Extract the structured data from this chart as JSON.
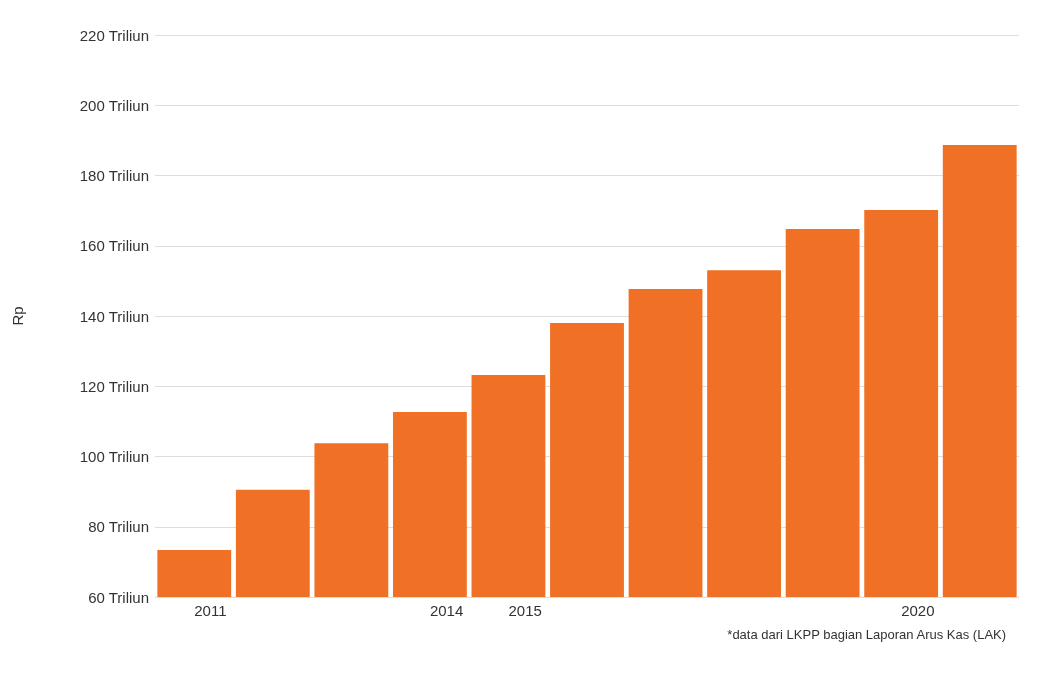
{
  "chart_data": {
    "type": "bar",
    "ylabel": "Rp",
    "categories": [
      "2011",
      null,
      null,
      "2014",
      "2015",
      null,
      null,
      null,
      null,
      "2020",
      null
    ],
    "values": [
      73.4,
      90.5,
      103.8,
      112.7,
      123.2,
      138,
      147.7,
      153,
      164.8,
      170.2,
      188.7
    ],
    "color": "#f07025",
    "ylim": [
      60,
      220
    ],
    "yticks": [
      {
        "value": 60,
        "label": "60 Triliun"
      },
      {
        "value": 80,
        "label": "80 Triliun"
      },
      {
        "value": 100,
        "label": "100 Triliun"
      },
      {
        "value": 120,
        "label": "120 Triliun"
      },
      {
        "value": 140,
        "label": "140 Triliun"
      },
      {
        "value": 160,
        "label": "160 Triliun"
      },
      {
        "value": 180,
        "label": "180 Triliun"
      },
      {
        "value": 200,
        "label": "200 Triliun"
      },
      {
        "value": 220,
        "label": "220 Triliun"
      }
    ],
    "grid": "y",
    "annotations": [
      "*data dari LKPP bagian Laporan Arus Kas (LAK)"
    ]
  }
}
